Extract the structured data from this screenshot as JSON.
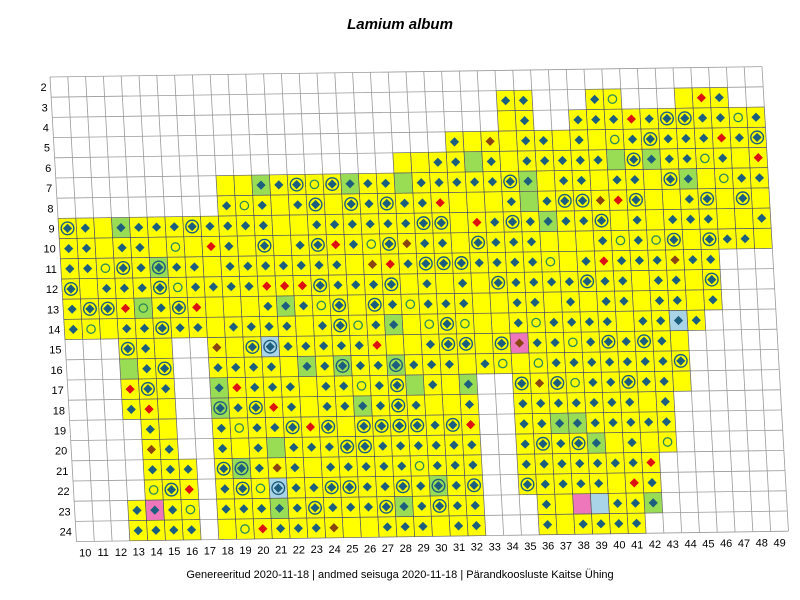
{
  "title": "Lamium album",
  "footer": "Genereeritud 2020-11-18  |  andmed seisuga 2020-11-18  |  Pärandkoosluste Kaitse Ühing",
  "colors": {
    "grid_line": "#9a9a9a",
    "occupied_cell": "#ffff00",
    "green_cell": "#99dd55",
    "pink_cell": "#ee77bb",
    "blue_cell": "#a9d3e6",
    "marker_blue": "#1c5e7e",
    "marker_red": "#dd1111",
    "marker_brown": "#8b4513",
    "outline": "#000000"
  },
  "icons": {
    "record_marker": "diamond",
    "older_record": "ring",
    "combined_record": "ring-with-diamond"
  },
  "axes": {
    "x_ticks": [
      "10",
      "11",
      "12",
      "13",
      "14",
      "15",
      "16",
      "17",
      "18",
      "19",
      "20",
      "21",
      "22",
      "23",
      "24",
      "25",
      "26",
      "27",
      "28",
      "29",
      "30",
      "31",
      "32",
      "33",
      "34",
      "35",
      "36",
      "37",
      "38",
      "39",
      "40",
      "41",
      "42",
      "43",
      "44",
      "45",
      "46",
      "47",
      "48",
      "49"
    ],
    "y_ticks": [
      "2",
      "3",
      "4",
      "5",
      "6",
      "7",
      "8",
      "9",
      "10",
      "11",
      "12",
      "13",
      "14",
      "15",
      "16",
      "17",
      "18",
      "19",
      "20",
      "21",
      "22",
      "23",
      "24"
    ]
  },
  "map_data": {
    "row_spans": [
      {
        "row": 3,
        "spans": [
          [
            25,
            26
          ],
          [
            30,
            31
          ],
          [
            35,
            37
          ]
        ]
      },
      {
        "row": 4,
        "spans": [
          [
            25,
            26
          ],
          [
            29,
            40
          ]
        ]
      },
      {
        "row": 5,
        "spans": [
          [
            22,
            40
          ],
          [
            43,
            47
          ]
        ]
      },
      {
        "row": 6,
        "spans": [
          [
            19,
            40
          ],
          [
            41,
            48
          ]
        ]
      },
      {
        "row": 7,
        "spans": [
          [
            9,
            39
          ],
          [
            40,
            45
          ]
        ]
      },
      {
        "row": 8,
        "spans": [
          [
            9,
            37
          ],
          [
            38,
            44
          ]
        ]
      },
      {
        "row": 9,
        "spans": [
          [
            -2,
            37
          ],
          [
            38,
            40
          ]
        ]
      },
      {
        "row": 10,
        "spans": [
          [
            -3,
            37
          ],
          [
            38,
            39
          ]
        ]
      },
      {
        "row": 11,
        "spans": [
          [
            -2,
            36
          ]
        ]
      },
      {
        "row": 12,
        "spans": [
          [
            -2,
            36
          ]
        ]
      },
      {
        "row": 13,
        "spans": [
          [
            -1,
            36
          ]
        ]
      },
      {
        "row": 14,
        "spans": [
          [
            -2,
            35
          ]
        ]
      },
      {
        "row": 15,
        "spans": [
          [
            -5,
            -4
          ],
          [
            3,
            5
          ],
          [
            8,
            34
          ]
        ]
      },
      {
        "row": 16,
        "spans": [
          [
            -5,
            -4
          ],
          [
            3,
            5
          ],
          [
            8,
            34
          ]
        ]
      },
      {
        "row": 17,
        "spans": [
          [
            -5,
            -4
          ],
          [
            3,
            5
          ],
          [
            8,
            22
          ],
          [
            25,
            34
          ]
        ]
      },
      {
        "row": 18,
        "spans": [
          [
            -5,
            -4
          ],
          [
            3,
            5
          ],
          [
            8,
            22
          ],
          [
            25,
            33
          ]
        ]
      },
      {
        "row": 19,
        "spans": [
          [
            -5,
            -3
          ],
          [
            4,
            5
          ],
          [
            8,
            22
          ],
          [
            25,
            33
          ]
        ]
      },
      {
        "row": 20,
        "spans": [
          [
            -5,
            -3
          ],
          [
            4,
            5
          ],
          [
            8,
            22
          ],
          [
            25,
            33
          ]
        ]
      },
      {
        "row": 21,
        "spans": [
          [
            -5,
            -3
          ],
          [
            4,
            6
          ],
          [
            8,
            22
          ],
          [
            25,
            32
          ]
        ]
      },
      {
        "row": 22,
        "spans": [
          [
            -5,
            -3
          ],
          [
            4,
            6
          ],
          [
            8,
            22
          ],
          [
            25,
            32
          ]
        ]
      },
      {
        "row": 23,
        "spans": [
          [
            -5,
            -2
          ],
          [
            3,
            6
          ],
          [
            8,
            22
          ],
          [
            26,
            32
          ]
        ]
      },
      {
        "row": 24,
        "spans": [
          [
            -5,
            -2
          ],
          [
            3,
            6
          ],
          [
            8,
            22
          ],
          [
            26,
            31
          ]
        ]
      }
    ]
  }
}
